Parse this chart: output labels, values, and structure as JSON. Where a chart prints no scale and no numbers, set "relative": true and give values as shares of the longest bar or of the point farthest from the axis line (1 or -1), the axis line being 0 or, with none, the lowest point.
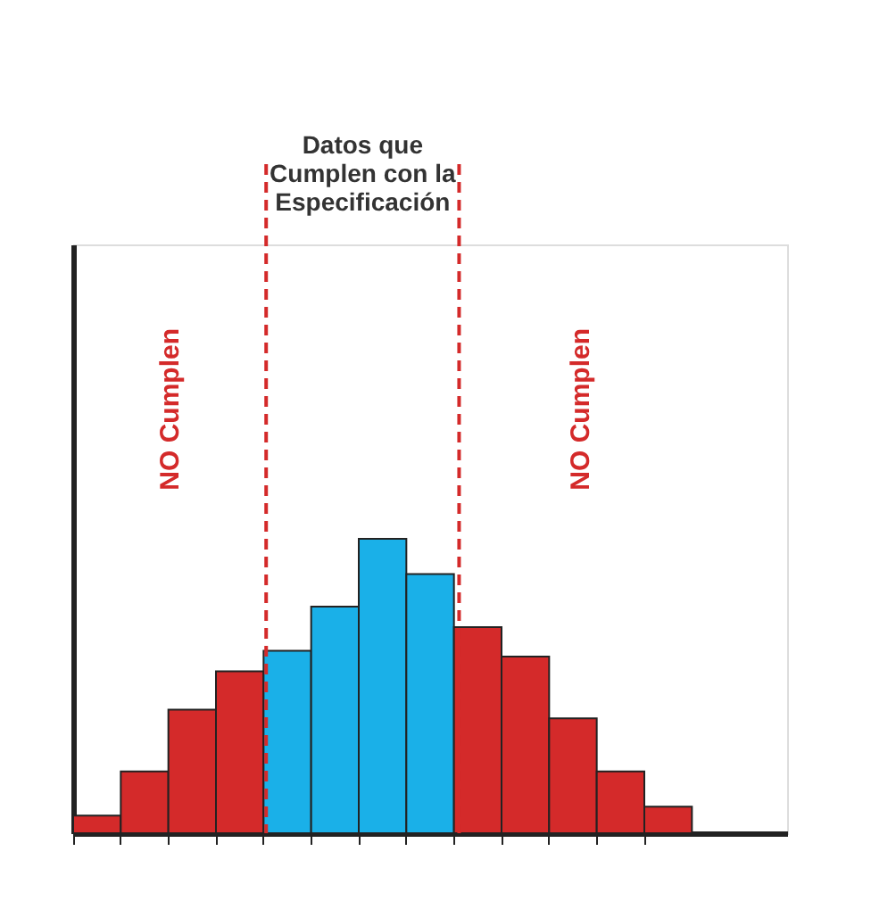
{
  "chart_data": {
    "type": "bar",
    "relative": true,
    "categories": [
      null,
      null,
      null,
      null,
      null,
      null,
      null,
      null,
      null,
      null,
      null,
      null,
      null
    ],
    "values": [
      0.06,
      0.21,
      0.42,
      0.55,
      0.62,
      0.77,
      1,
      0.88,
      0.7,
      0.6,
      0.39,
      0.21,
      0.09
    ],
    "colors": [
      "#d42a2a",
      "#d42a2a",
      "#d42a2a",
      "#d42a2a",
      "#1ab0e8",
      "#1ab0e8",
      "#1ab0e8",
      "#1ab0e8",
      "#d42a2a",
      "#d42a2a",
      "#d42a2a",
      "#d42a2a",
      "#d42a2a"
    ],
    "annotations": [
      "Datos que\nCumplen con la\nEspecificación",
      "NO Cumplen",
      "NO Cumplen"
    ]
  }
}
